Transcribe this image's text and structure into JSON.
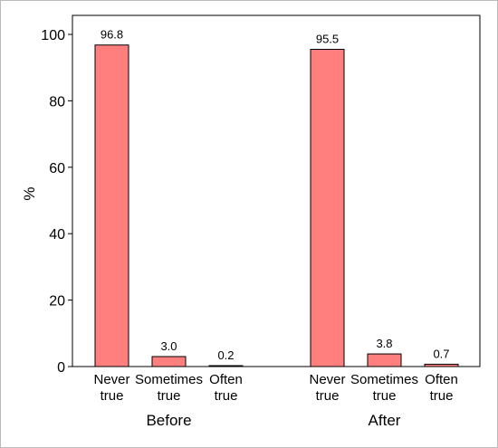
{
  "chart_data": {
    "type": "bar",
    "ylabel": "%",
    "ylim": [
      0,
      100
    ],
    "yticks": [
      0,
      20,
      40,
      60,
      80,
      100
    ],
    "grid": false,
    "legend": "none",
    "bar_color": "#ff7f7f",
    "bar_edge_color": "#000000",
    "categories": [
      "Never true",
      "Sometimes true",
      "Often true"
    ],
    "groups": [
      {
        "name": "Before",
        "categories": [
          {
            "line1": "Never",
            "line2": "true"
          },
          {
            "line1": "Sometimes",
            "line2": "true"
          },
          {
            "line1": "Often",
            "line2": "true"
          }
        ],
        "values": [
          96.8,
          3.0,
          0.2
        ],
        "labels": [
          "96.8",
          "3.0",
          "0.2"
        ]
      },
      {
        "name": "After",
        "categories": [
          {
            "line1": "Never",
            "line2": "true"
          },
          {
            "line1": "Sometimes",
            "line2": "true"
          },
          {
            "line1": "Often",
            "line2": "true"
          }
        ],
        "values": [
          95.5,
          3.8,
          0.7
        ],
        "labels": [
          "95.5",
          "3.8",
          "0.7"
        ]
      }
    ]
  }
}
